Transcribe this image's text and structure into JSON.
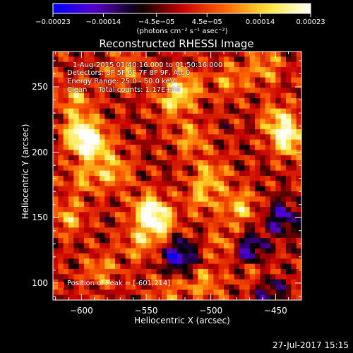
{
  "chart_data": {
    "type": "heatmap",
    "title": "Reconstructed RHESSI Image",
    "xlabel": "Heliocentric X (arcsec)",
    "ylabel": "Heliocentric Y (arcsec)",
    "xlim": [
      -622,
      -430
    ],
    "ylim": [
      87,
      277
    ],
    "x_ticks": [
      "−600",
      "−550",
      "−500",
      "−450"
    ],
    "x_tick_values": [
      -600,
      -550,
      -500,
      -450
    ],
    "y_ticks": [
      "100",
      "150",
      "200",
      "250"
    ],
    "y_tick_values": [
      100,
      150,
      200,
      250
    ],
    "colorbar": {
      "ticks": [
        "−0.00023",
        "−0.00014",
        "−4.5e−05",
        "4.5e−05",
        "0.00014",
        "0.00023"
      ],
      "tick_values": [
        -0.00023,
        -0.00014,
        -4.5e-05,
        4.5e-05,
        0.00014,
        0.00023
      ],
      "range": [
        -0.00023,
        0.00023
      ],
      "unit": "(photons cm⁻² s⁻¹ asec⁻²)",
      "colormap": [
        "#0000ff",
        "#5a00c8",
        "#000000",
        "#c80000",
        "#ff6400",
        "#ffe632",
        "#ffffff"
      ]
    },
    "annotations": {
      "time": "1-Aug-2015 01:40:16.000 to 01:50:16.000",
      "detectors": "Detectors: 3F 5F 6F 7F 8F 9F, Att 0",
      "energy": "Energy Range: 25.0 - 50.0 keV",
      "method": "Clean     Total counts: 1.17E+04",
      "peak": "Position of Peak = [-601,214]"
    },
    "peak": {
      "x": -601,
      "y": 214
    },
    "blobs": [
      {
        "x": -600,
        "y": 214,
        "v": 0.00023
      },
      {
        "x": -590,
        "y": 205,
        "v": 0.00017
      },
      {
        "x": -605,
        "y": 240,
        "v": 0.00012
      },
      {
        "x": -575,
        "y": 185,
        "v": 0.00013
      },
      {
        "x": -548,
        "y": 155,
        "v": 0.0002
      },
      {
        "x": -540,
        "y": 145,
        "v": 0.00016
      },
      {
        "x": -555,
        "y": 130,
        "v": 0.00011
      },
      {
        "x": -530,
        "y": 238,
        "v": 0.00012
      },
      {
        "x": -520,
        "y": 250,
        "v": 0.00014
      },
      {
        "x": -515,
        "y": 210,
        "v": 0.00011
      },
      {
        "x": -500,
        "y": 182,
        "v": 0.00012
      },
      {
        "x": -508,
        "y": 165,
        "v": 0.0001
      },
      {
        "x": -478,
        "y": 158,
        "v": 0.00014
      },
      {
        "x": -440,
        "y": 210,
        "v": 0.0002
      },
      {
        "x": -448,
        "y": 225,
        "v": 0.00014
      },
      {
        "x": -458,
        "y": 265,
        "v": 0.00011
      },
      {
        "x": -610,
        "y": 150,
        "v": 0.00012
      },
      {
        "x": -585,
        "y": 110,
        "v": 0.0001
      },
      {
        "x": -505,
        "y": 100,
        "v": 0.00011
      },
      {
        "x": -490,
        "y": 130,
        "v": 9e-05
      },
      {
        "x": -465,
        "y": 108,
        "v": 9e-05
      },
      {
        "x": -568,
        "y": 262,
        "v": 0.0001
      },
      {
        "x": -485,
        "y": 255,
        "v": 0.0001
      },
      {
        "x": -598,
        "y": 180,
        "v": 0.0001
      },
      {
        "x": -532,
        "y": 95,
        "v": 8e-05
      },
      {
        "x": -525,
        "y": 120,
        "v": -0.00018
      },
      {
        "x": -470,
        "y": 125,
        "v": -0.00016
      },
      {
        "x": -445,
        "y": 150,
        "v": -0.00014
      },
      {
        "x": -455,
        "y": 95,
        "v": -0.00012
      }
    ]
  }
}
